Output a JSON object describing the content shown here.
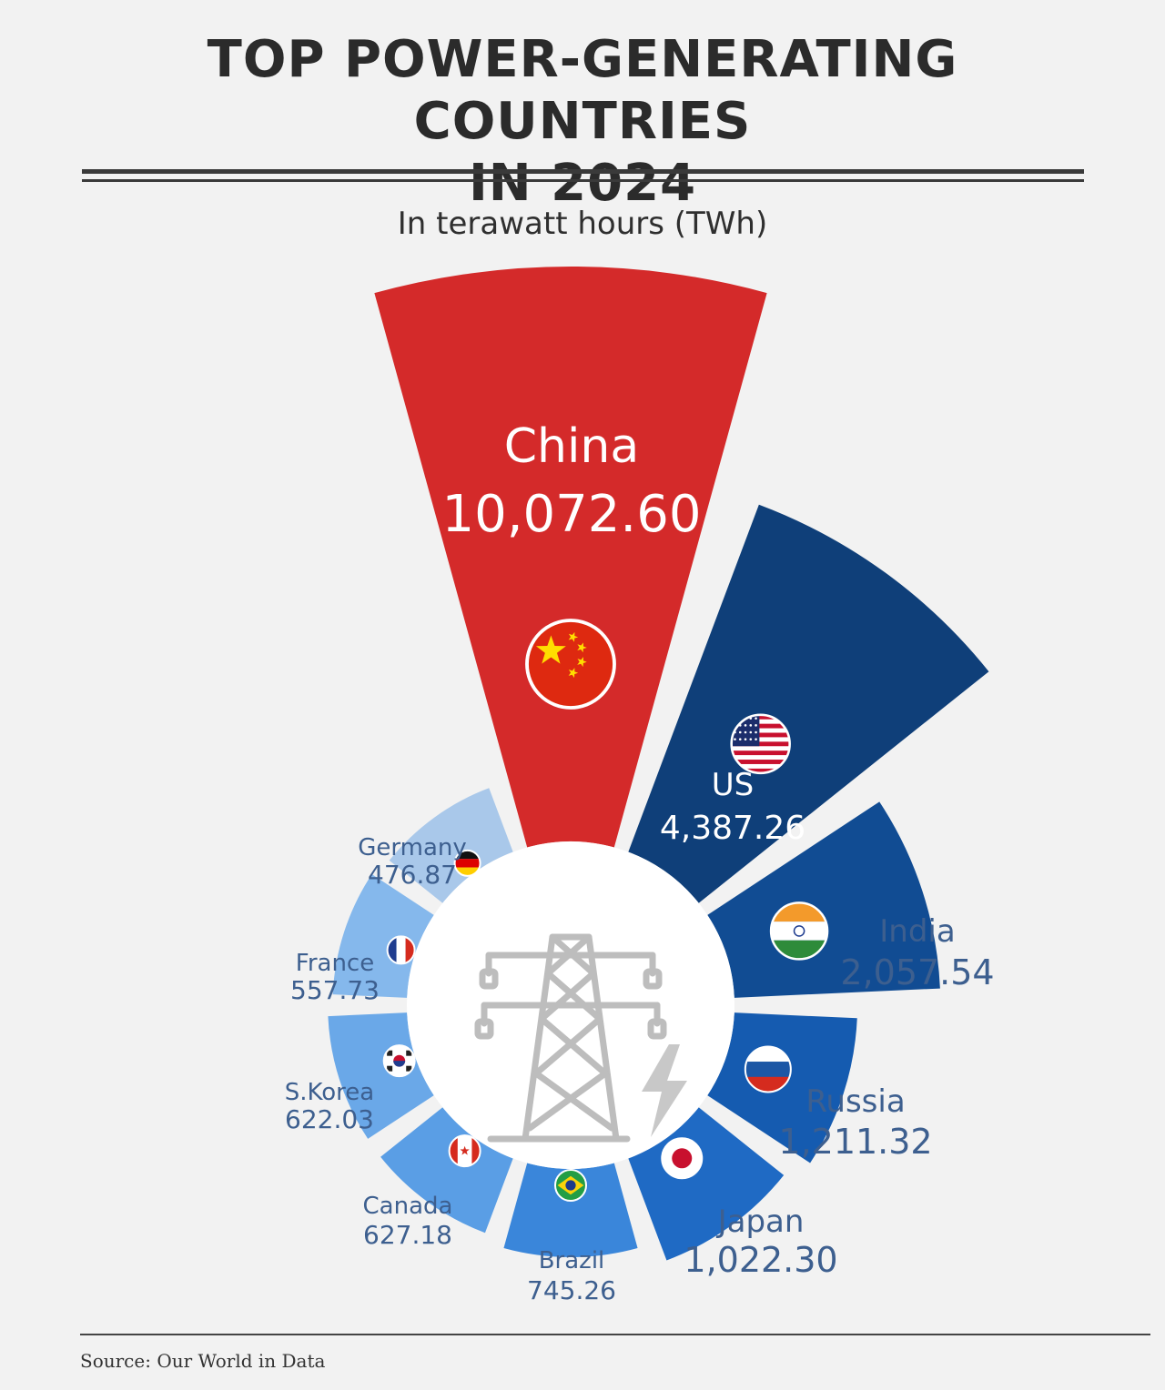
{
  "title_line1": "TOP POWER-GENERATING COUNTRIES",
  "title_line2": "IN 2024",
  "subtitle": "In terawatt hours (TWh)",
  "source": "Source: Our World in Data",
  "colors": {
    "china": "#d42a2a",
    "dark_blue": "#0f3f79",
    "mid_blue": "#155bb0",
    "light_blue": "#5a9ee5",
    "pale_blue": "#a9c8ea",
    "label_blue": "#3d5f8f",
    "tower_gray": "#bdbdbd"
  },
  "center_icon": "transmission-tower-with-lightning-icon",
  "chart_data": {
    "type": "radial-bar",
    "unit": "TWh",
    "categories": [
      "China",
      "US",
      "India",
      "Russia",
      "Japan",
      "Brazil",
      "Canada",
      "S.Korea",
      "France",
      "Germany"
    ],
    "values": [
      10072.6,
      4387.26,
      2057.54,
      1211.32,
      1022.3,
      745.26,
      627.18,
      622.03,
      557.73,
      476.87
    ],
    "value_labels": [
      "10,072.60",
      "4,387.26",
      "2,057.54",
      "1,211.32",
      "1,022.30",
      "745.26",
      "627.18",
      "622.03",
      "557.73",
      "476.87"
    ],
    "flags": [
      "china-flag-icon",
      "us-flag-icon",
      "india-flag-icon",
      "russia-flag-icon",
      "japan-flag-icon",
      "brazil-flag-icon",
      "canada-flag-icon",
      "south-korea-flag-icon",
      "france-flag-icon",
      "germany-flag-icon"
    ],
    "segment_colors": [
      "#d42a2a",
      "#0f3f79",
      "#114c93",
      "#155bb0",
      "#1f6ac4",
      "#3a86da",
      "#5a9ee5",
      "#6aa8e8",
      "#85b8ec",
      "#a9c8ea"
    ]
  }
}
